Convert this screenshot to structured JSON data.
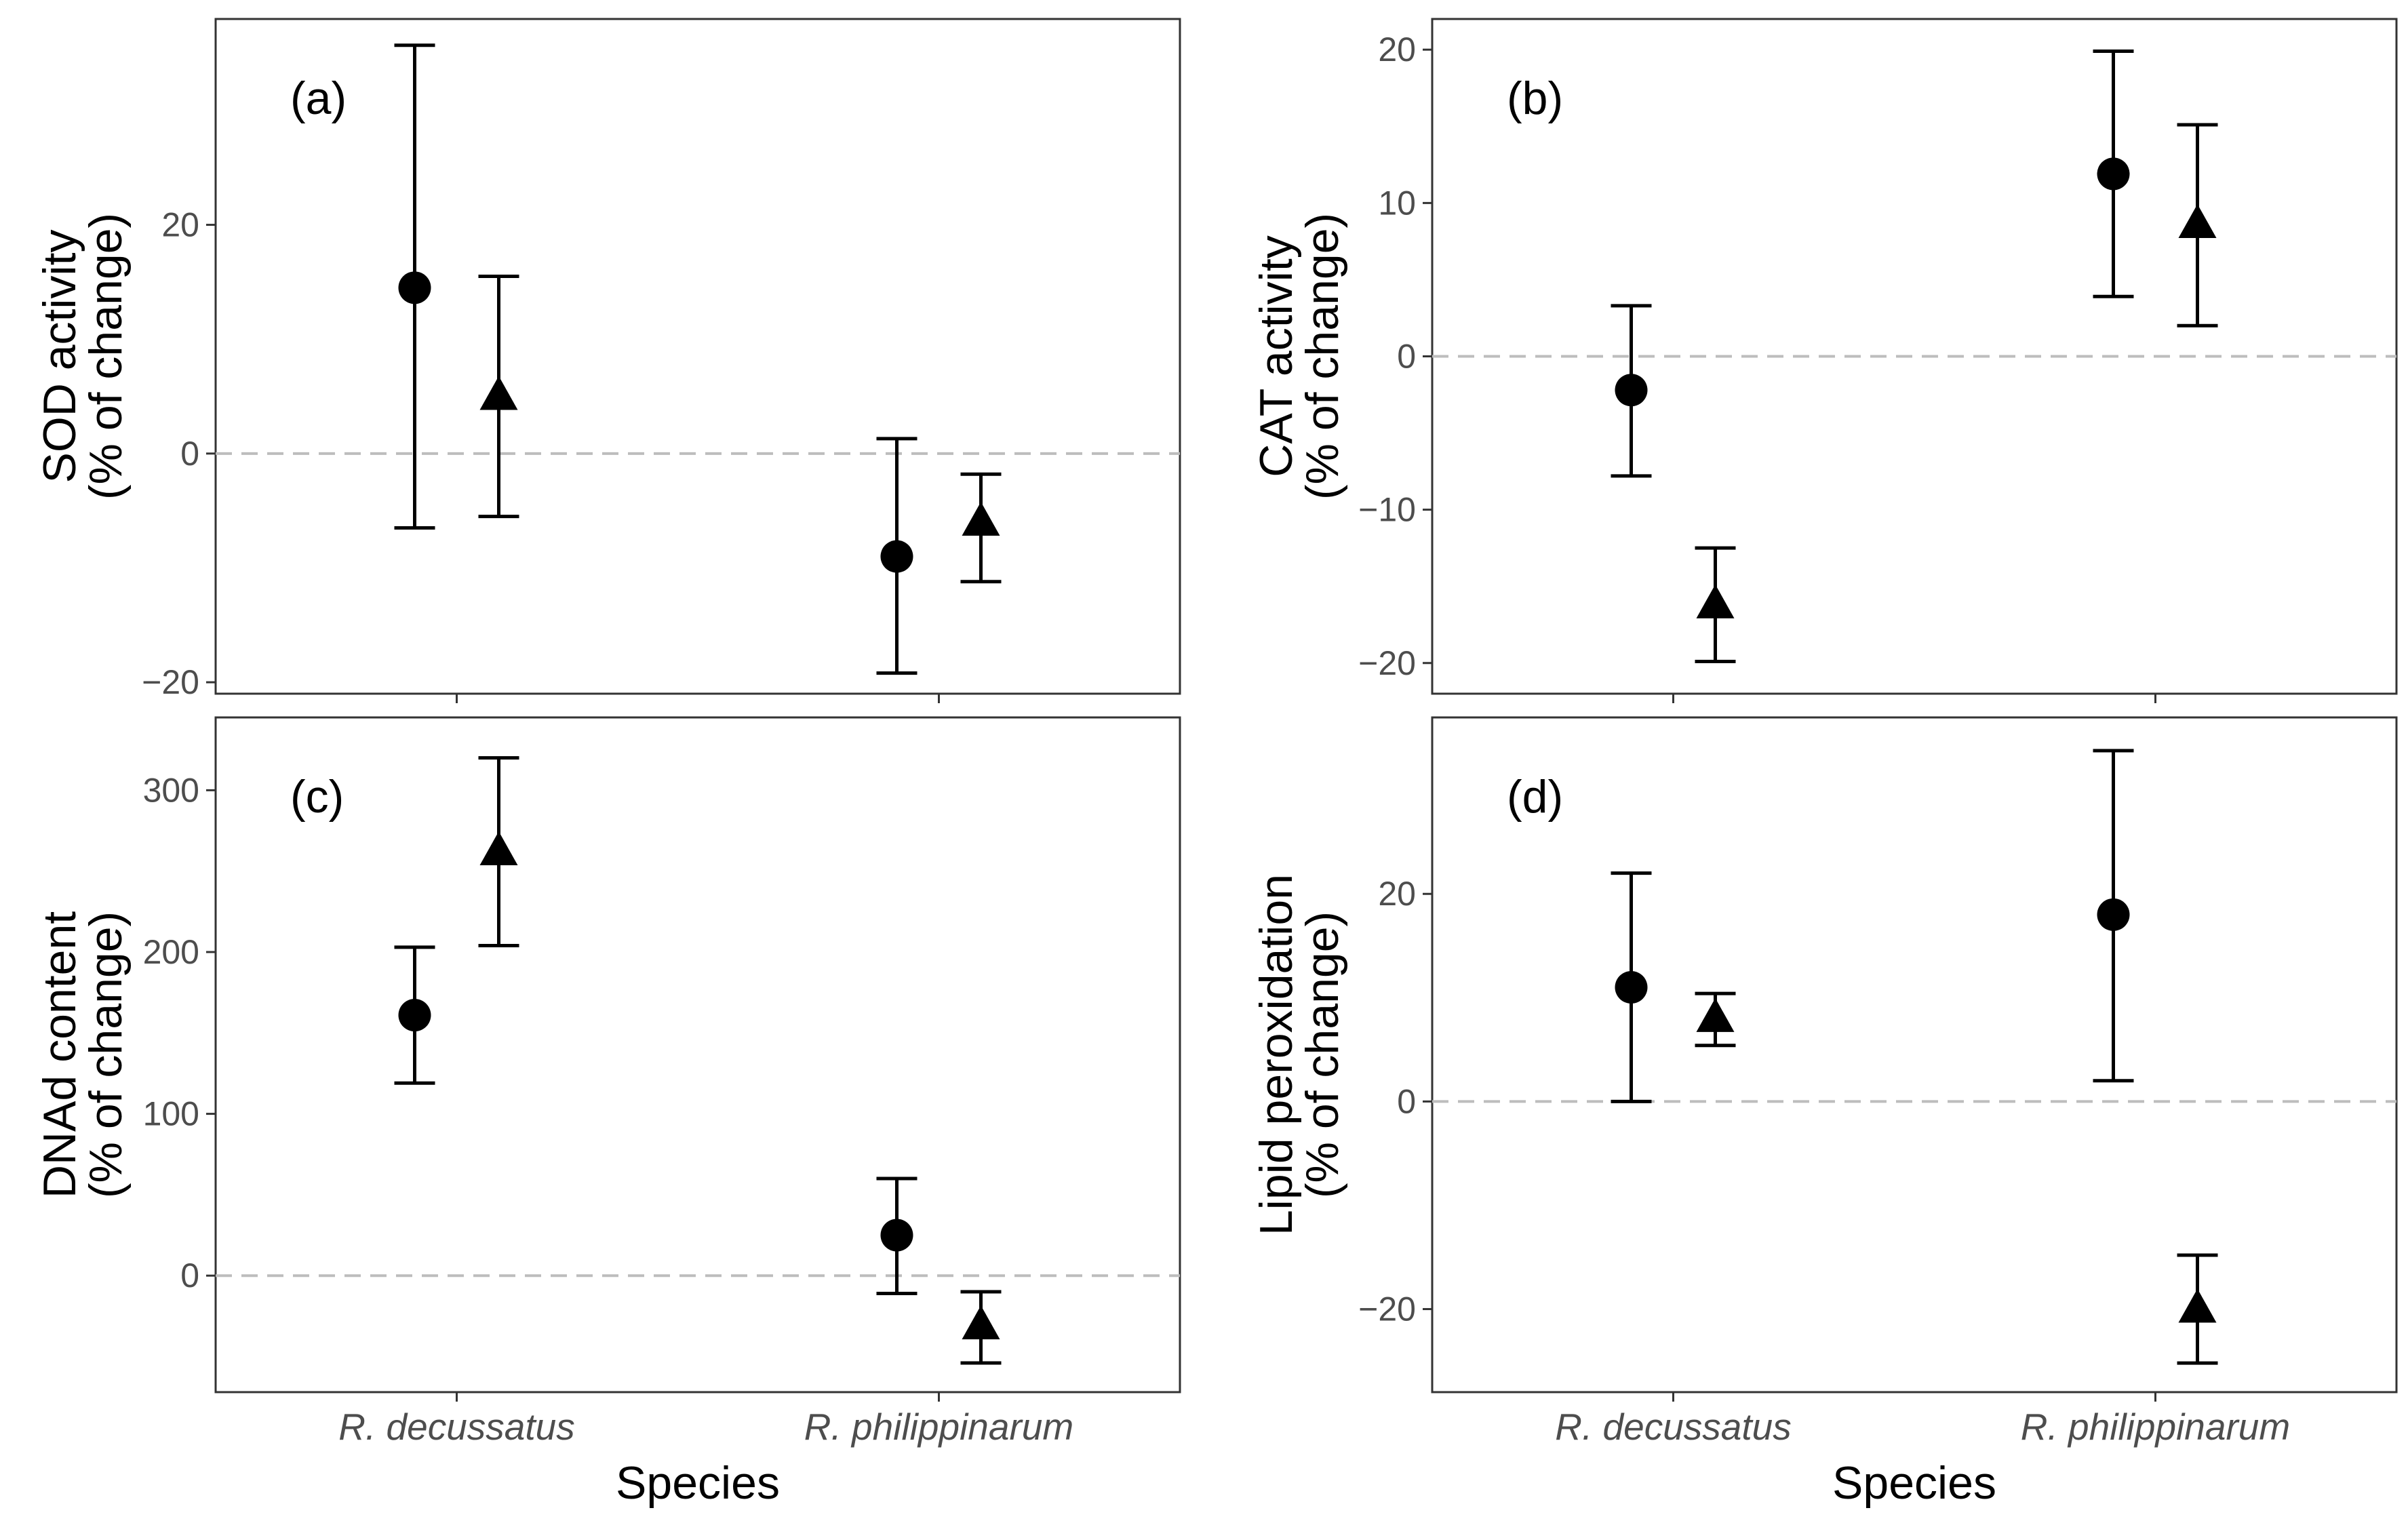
{
  "figure": {
    "xlabel": "Species"
  },
  "chart_data": [
    {
      "type": "scatter",
      "panel_label": "(a)",
      "ylabel": "SOD activity",
      "ylabel2": "(% of change)",
      "categories": [
        "R. decussatus",
        "R. philippinarum"
      ],
      "ylim": [
        -21,
        38
      ],
      "yticks": [
        -20,
        0,
        20
      ],
      "ytick_labels": [
        "−20",
        "0",
        "20"
      ],
      "reference_line": 0,
      "series": [
        {
          "marker": "circle",
          "values": [
            14.5,
            -9
          ],
          "lower": [
            -6.5,
            -19.2
          ],
          "upper": [
            35.7,
            1.3
          ]
        },
        {
          "marker": "triangle",
          "values": [
            5,
            -6
          ],
          "lower": [
            -5.5,
            -11.2
          ],
          "upper": [
            15.5,
            -1.8
          ]
        }
      ]
    },
    {
      "type": "scatter",
      "panel_label": "(b)",
      "ylabel": "CAT activity",
      "ylabel2": "(% of change)",
      "categories": [
        "R. decussatus",
        "R. philippinarum"
      ],
      "ylim": [
        -22,
        22
      ],
      "yticks": [
        -20,
        -10,
        0,
        10,
        20
      ],
      "ytick_labels": [
        "−20",
        "−10",
        "0",
        "10",
        "20"
      ],
      "reference_line": 0,
      "series": [
        {
          "marker": "circle",
          "values": [
            -2.2,
            11.9
          ],
          "lower": [
            -7.8,
            3.9
          ],
          "upper": [
            3.3,
            19.9
          ]
        },
        {
          "marker": "triangle",
          "values": [
            -16.2,
            8.6
          ],
          "lower": [
            -19.9,
            2.0
          ],
          "upper": [
            -12.5,
            15.1
          ]
        }
      ]
    },
    {
      "type": "scatter",
      "panel_label": "(c)",
      "ylabel": "DNAd content",
      "ylabel2": "(% of change)",
      "categories": [
        "R. decussatus",
        "R. philippinarum"
      ],
      "ylim": [
        -72,
        345
      ],
      "yticks": [
        0,
        100,
        200,
        300
      ],
      "ytick_labels": [
        "0",
        "100",
        "200",
        "300"
      ],
      "reference_line": 0,
      "series": [
        {
          "marker": "circle",
          "values": [
            161,
            25
          ],
          "lower": [
            119,
            -11
          ],
          "upper": [
            203,
            60
          ]
        },
        {
          "marker": "triangle",
          "values": [
            262,
            -31
          ],
          "lower": [
            204,
            -54
          ],
          "upper": [
            320,
            -10
          ]
        }
      ]
    },
    {
      "type": "scatter",
      "panel_label": "(d)",
      "ylabel": "Lipid peroxidation",
      "ylabel2": "(% of change)",
      "categories": [
        "R. decussatus",
        "R. philippinarum"
      ],
      "ylim": [
        -28,
        37
      ],
      "yticks": [
        -20,
        0,
        20
      ],
      "ytick_labels": [
        "−20",
        "0",
        "20"
      ],
      "reference_line": 0,
      "series": [
        {
          "marker": "circle",
          "values": [
            11,
            18
          ],
          "lower": [
            0,
            2
          ],
          "upper": [
            22,
            33.8
          ]
        },
        {
          "marker": "triangle",
          "values": [
            8,
            -20
          ],
          "lower": [
            5.4,
            -25.2
          ],
          "upper": [
            10.4,
            -14.8
          ]
        }
      ]
    }
  ]
}
